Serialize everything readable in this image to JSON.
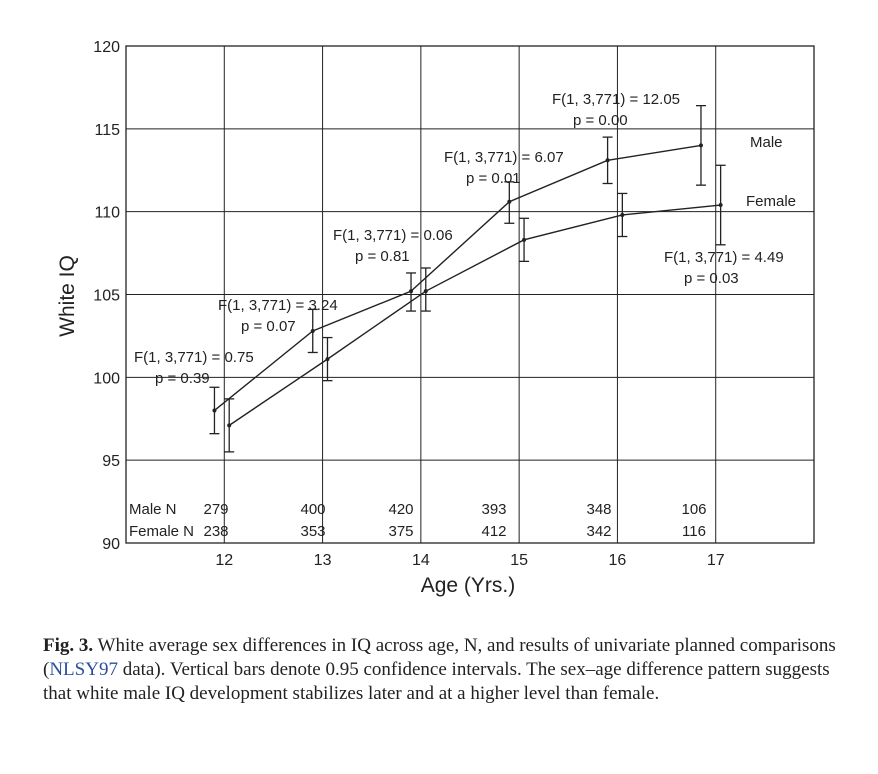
{
  "chart_data": {
    "type": "line",
    "ylabel": "White IQ",
    "xlabel": "Age (Yrs.)",
    "ylim": [
      90,
      120
    ],
    "yticks": [
      90,
      95,
      100,
      105,
      110,
      115,
      120
    ],
    "xticks": [
      12,
      13,
      14,
      15,
      16,
      17
    ],
    "xlim": [
      11,
      18
    ],
    "grid": true,
    "series": [
      {
        "name": "Male",
        "label": "Male",
        "x": [
          11.9,
          12.9,
          13.9,
          14.9,
          15.9,
          16.85
        ],
        "values": [
          98.0,
          102.8,
          105.2,
          110.6,
          113.1,
          114.0
        ],
        "ci_low": [
          96.6,
          101.5,
          104.0,
          109.3,
          111.7,
          111.6
        ],
        "ci_high": [
          99.4,
          104.1,
          106.3,
          111.8,
          114.5,
          116.4
        ]
      },
      {
        "name": "Female",
        "label": "Female",
        "x": [
          12.05,
          13.05,
          14.05,
          15.05,
          16.05,
          17.05
        ],
        "values": [
          97.1,
          101.1,
          105.2,
          108.3,
          109.8,
          110.4
        ],
        "ci_low": [
          95.5,
          99.8,
          104.0,
          107.0,
          108.5,
          108.0
        ],
        "ci_high": [
          98.7,
          102.4,
          106.6,
          109.6,
          111.1,
          112.8
        ]
      }
    ],
    "annotations": [
      {
        "f": "F(1, 3,771) = 0.75",
        "p": "p = 0.39"
      },
      {
        "f": "F(1, 3,771) = 3.24",
        "p": "p = 0.07"
      },
      {
        "f": "F(1, 3,771) = 0.06",
        "p": "p = 0.81"
      },
      {
        "f": "F(1, 3,771) = 6.07",
        "p": "p = 0.01"
      },
      {
        "f": "F(1, 3,771) = 12.05",
        "p": "p = 0.00"
      },
      {
        "f": "F(1, 3,771) = 4.49",
        "p": "p = 0.03"
      }
    ],
    "n_table": {
      "male_label": "Male    N",
      "female_label": "Female N",
      "male_n": [
        "279",
        "400",
        "420",
        "393",
        "348",
        "106"
      ],
      "female_n": [
        "238",
        "353",
        "375",
        "412",
        "342",
        "116"
      ]
    }
  },
  "caption": {
    "fig_label": "Fig. 3.",
    "text_before_link": " White average sex differences in IQ across age, N, and results of univariate planned comparisons (",
    "link_text": "NLSY97",
    "text_after_link": " data). Vertical bars denote 0.95 confidence intervals. The sex–age difference pattern suggests that white male IQ development stabilizes later and at a higher level than female."
  }
}
